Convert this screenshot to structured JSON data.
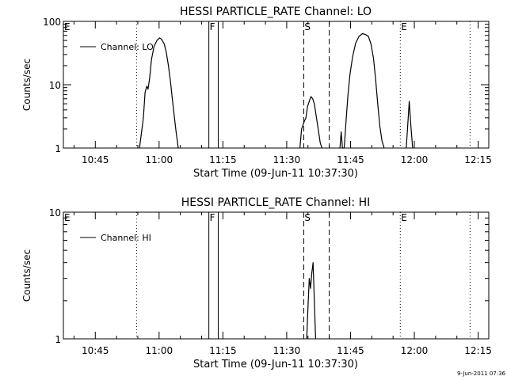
{
  "footer": {
    "timestamp": "9-Jun-2011 07:36"
  },
  "chart_data": [
    {
      "type": "line",
      "title": "HESSI PARTICLE_RATE Channel: LO",
      "xlabel": "Start Time (09-Jun-11 10:37:30)",
      "ylabel": "Counts/sec",
      "yscale": "log",
      "ylim": [
        1,
        100
      ],
      "xlim_minutes_after_start": [
        0,
        100
      ],
      "xticks": [
        {
          "minute": 7.5,
          "label": "10:45"
        },
        {
          "minute": 22.5,
          "label": "11:00"
        },
        {
          "minute": 37.5,
          "label": "11:15"
        },
        {
          "minute": 52.5,
          "label": "11:30"
        },
        {
          "minute": 67.5,
          "label": "11:45"
        },
        {
          "minute": 82.5,
          "label": "12:00"
        },
        {
          "minute": 97.5,
          "label": "12:15"
        }
      ],
      "yticks": [
        {
          "value": 1,
          "label": "1"
        },
        {
          "value": 10,
          "label": "10"
        },
        {
          "value": 100,
          "label": "100"
        }
      ],
      "legend": {
        "label": "Channel: LO",
        "position": "top-left"
      },
      "markers": [
        {
          "label": "E",
          "minute": 0,
          "style": "dotted",
          "labeled": true
        },
        {
          "label": "",
          "minute": 17.2,
          "style": "dotted",
          "labeled": false
        },
        {
          "label": "F",
          "minute": 34.2,
          "style": "solid",
          "labeled": true
        },
        {
          "label": "",
          "minute": 36.4,
          "style": "solid",
          "labeled": false
        },
        {
          "label": "S",
          "minute": 56.5,
          "style": "dashed",
          "labeled": true
        },
        {
          "label": "",
          "minute": 62.5,
          "style": "dashed",
          "labeled": false
        },
        {
          "label": "E",
          "minute": 79.2,
          "style": "dotted",
          "labeled": true
        },
        {
          "label": "",
          "minute": 95.6,
          "style": "dotted",
          "labeled": false
        }
      ],
      "series": [
        {
          "name": "Channel: LO",
          "segments": [
            {
              "x": [
                17.9,
                18.8,
                19.2,
                19.6,
                19.9,
                20.3,
                20.7,
                21.3,
                22.0,
                22.6,
                23.1,
                23.7,
                24.2,
                24.7,
                25.2,
                25.6,
                26.0,
                26.5,
                27.0
              ],
              "y": [
                1.0,
                3.0,
                7.5,
                9.5,
                8.5,
                13.0,
                25.0,
                40.0,
                50.0,
                55.0,
                52.0,
                44.0,
                32.0,
                20.0,
                11.0,
                6.0,
                3.5,
                1.8,
                1.0
              ]
            },
            {
              "x": [
                55.6,
                56.0,
                56.5,
                57.0,
                57.4,
                57.8,
                58.2,
                58.6,
                59.0,
                59.5,
                60.0,
                60.4,
                60.8
              ],
              "y": [
                1.0,
                2.0,
                2.5,
                3.0,
                4.5,
                5.5,
                6.5,
                6.0,
                5.0,
                3.0,
                1.8,
                1.2,
                1.0
              ]
            },
            {
              "x": [
                65.0,
                65.3,
                65.6,
                66.0,
                66.2,
                66.5,
                66.9,
                67.4,
                68.0,
                68.7,
                69.5,
                70.3,
                71.0,
                71.7,
                72.3,
                72.9,
                73.4,
                73.9,
                74.4,
                74.9,
                75.4
              ],
              "y": [
                1.0,
                1.8,
                1.0,
                1.0,
                1.5,
                3.0,
                7.0,
                15.0,
                28.0,
                45.0,
                58.0,
                64.0,
                62.0,
                58.0,
                44.0,
                26.0,
                12.0,
                5.0,
                2.2,
                1.3,
                1.0
              ]
            },
            {
              "x": [
                80.6,
                80.9,
                81.3,
                81.7,
                82.1
              ],
              "y": [
                1.0,
                2.0,
                5.5,
                2.2,
                1.0
              ]
            }
          ]
        }
      ]
    },
    {
      "type": "line",
      "title": "HESSI PARTICLE_RATE Channel: HI",
      "xlabel": "Start Time (09-Jun-11 10:37:30)",
      "ylabel": "Counts/sec",
      "yscale": "log",
      "ylim": [
        1,
        10
      ],
      "xlim_minutes_after_start": [
        0,
        100
      ],
      "xticks": [
        {
          "minute": 7.5,
          "label": "10:45"
        },
        {
          "minute": 22.5,
          "label": "11:00"
        },
        {
          "minute": 37.5,
          "label": "11:15"
        },
        {
          "minute": 52.5,
          "label": "11:30"
        },
        {
          "minute": 67.5,
          "label": "11:45"
        },
        {
          "minute": 82.5,
          "label": "12:00"
        },
        {
          "minute": 97.5,
          "label": "12:15"
        }
      ],
      "yticks": [
        {
          "value": 1,
          "label": "1"
        },
        {
          "value": 10,
          "label": "10"
        }
      ],
      "legend": {
        "label": "Channel: HI",
        "position": "top-left"
      },
      "markers": [
        {
          "label": "E",
          "minute": 0,
          "style": "dotted",
          "labeled": true
        },
        {
          "label": "",
          "minute": 17.2,
          "style": "dotted",
          "labeled": false
        },
        {
          "label": "F",
          "minute": 34.2,
          "style": "solid",
          "labeled": true
        },
        {
          "label": "",
          "minute": 36.4,
          "style": "solid",
          "labeled": false
        },
        {
          "label": "S",
          "minute": 56.5,
          "style": "dashed",
          "labeled": true
        },
        {
          "label": "",
          "minute": 62.5,
          "style": "dashed",
          "labeled": false
        },
        {
          "label": "E",
          "minute": 79.2,
          "style": "dotted",
          "labeled": true
        },
        {
          "label": "",
          "minute": 95.6,
          "style": "dotted",
          "labeled": false
        }
      ],
      "series": [
        {
          "name": "Channel: HI",
          "segments": [
            {
              "x": [
                57.2,
                57.5,
                57.8,
                58.1,
                58.4,
                58.7,
                59.0,
                59.3
              ],
              "y": [
                1.0,
                1.8,
                3.0,
                2.5,
                3.3,
                4.0,
                2.0,
                1.0
              ]
            }
          ]
        }
      ]
    }
  ]
}
